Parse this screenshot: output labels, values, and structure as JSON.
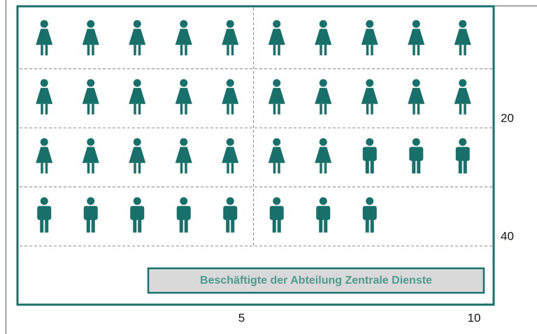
{
  "chart_data": {
    "type": "pictogram",
    "categories": [
      null,
      null
    ],
    "values": [
      27,
      11
    ],
    "shapes": [
      "woman",
      "man"
    ],
    "color": "#17706a",
    "label": "Beschäftigte der Abteilung Zentrale Dienste",
    "xlim": [
      0,
      10
    ],
    "xticks": [
      5,
      10
    ],
    "ylim": [
      0,
      40
    ],
    "yticks": [
      20,
      40
    ],
    "grid": true
  }
}
